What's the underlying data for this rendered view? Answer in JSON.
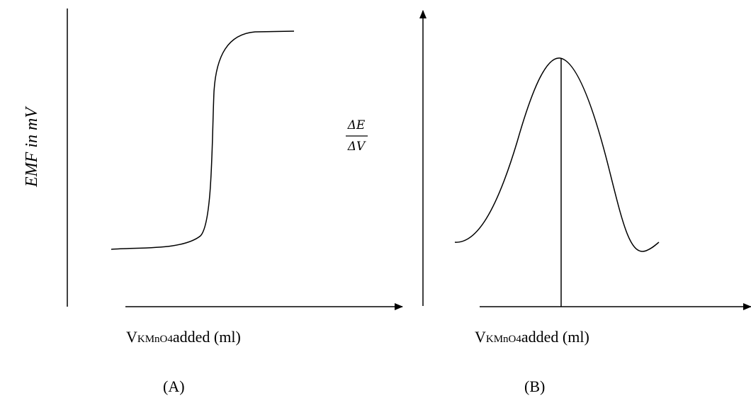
{
  "panels": [
    {
      "y_label": "EMF in mV",
      "x_label": {
        "main": "V",
        "sub": "KMnO4",
        "rest": "added (ml)"
      },
      "caption": "(A)"
    },
    {
      "y_label": {
        "numerator": "ΔE",
        "denominator": "ΔV"
      },
      "x_label": {
        "main": "V",
        "sub": "KMnO4",
        "rest": "added (ml)"
      },
      "caption": "(B)"
    }
  ]
}
